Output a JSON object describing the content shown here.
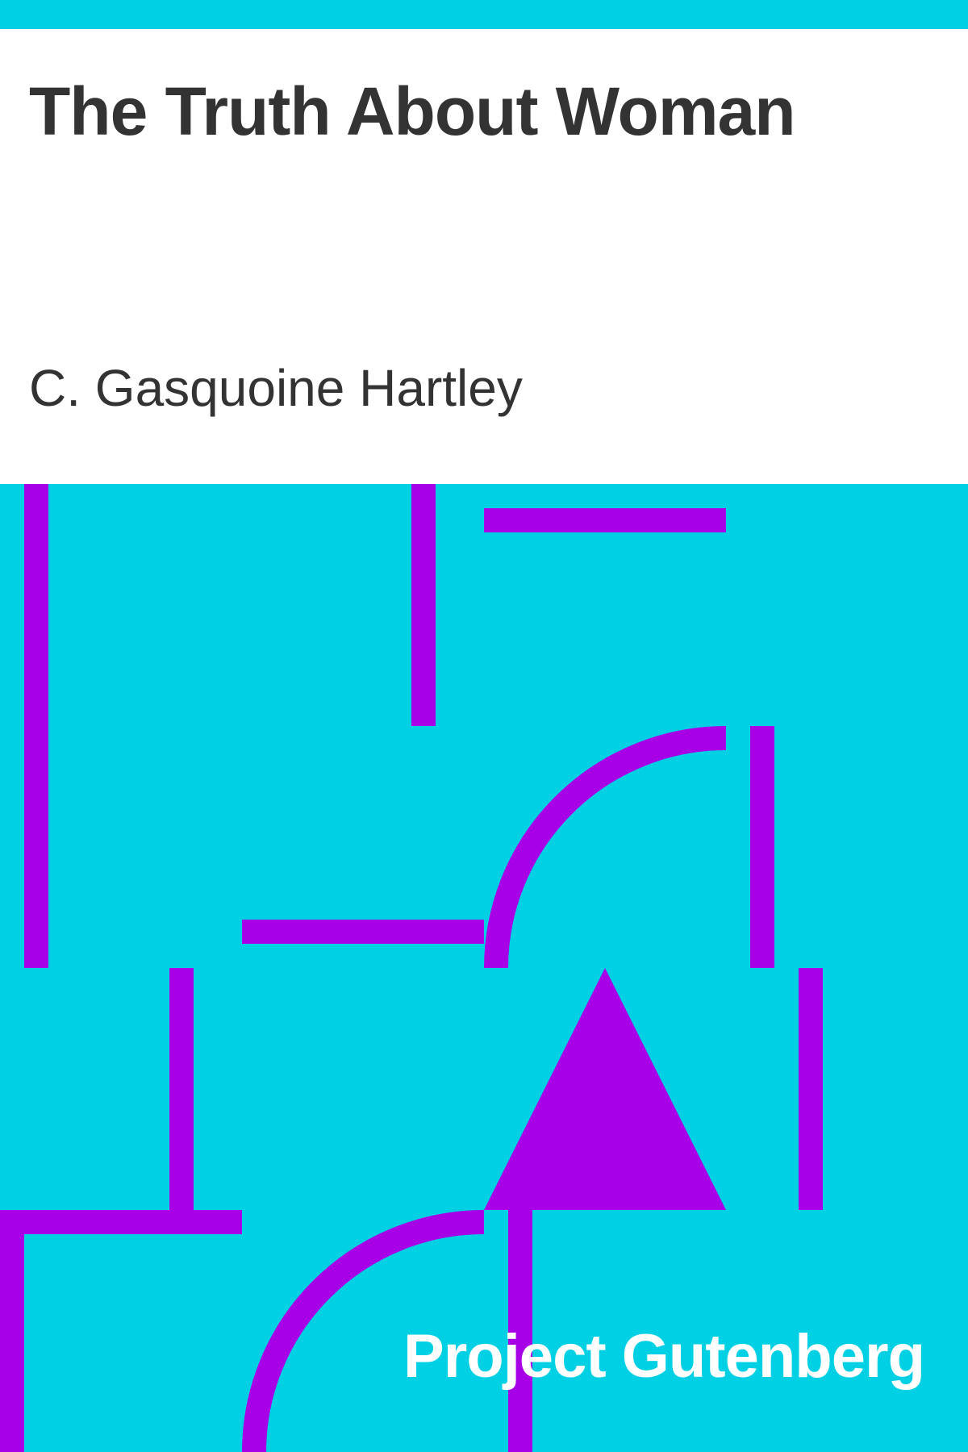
{
  "cover": {
    "title": "The Truth About Woman",
    "author": "C. Gasquoine Hartley",
    "publisher": "Project Gutenberg"
  },
  "colors": {
    "background": "#00d0e4",
    "header_background": "#ffffff",
    "ornament": "#a800e6",
    "title_text": "#333333",
    "author_text": "#333333",
    "publisher_text": "#ffffff"
  }
}
